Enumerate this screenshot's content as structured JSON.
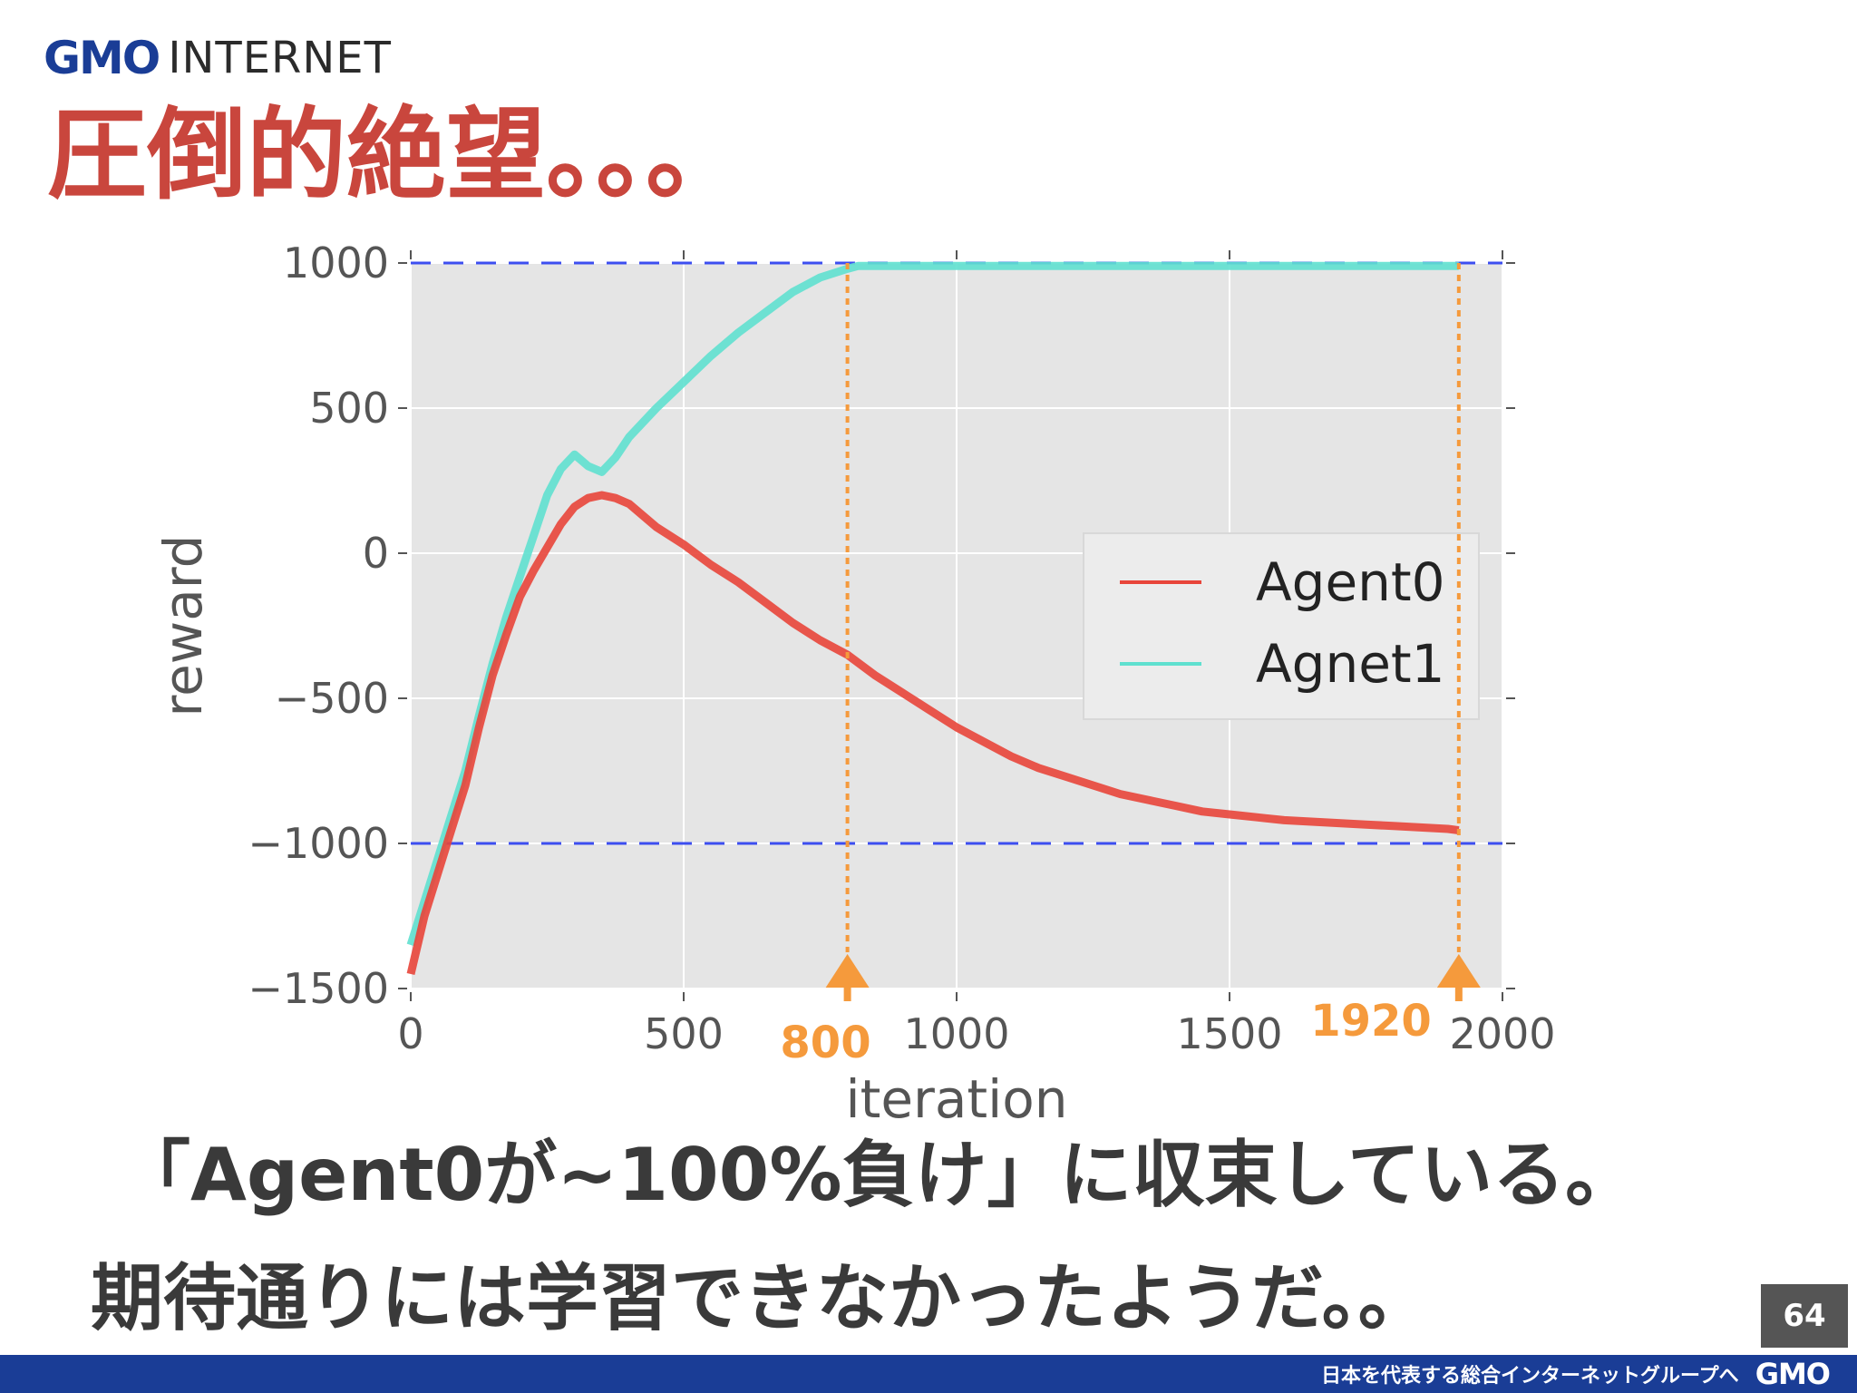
{
  "header": {
    "logo_gmo": "GMO",
    "logo_internet": "INTERNET",
    "title": "圧倒的絶望。。。"
  },
  "chart_data": {
    "type": "line",
    "xlabel": "iteration",
    "ylabel": "reward",
    "xlim": [
      0,
      2000
    ],
    "ylim": [
      -1500,
      1000
    ],
    "x_ticks": [
      0,
      500,
      1000,
      1500,
      2000
    ],
    "y_ticks": [
      1000,
      500,
      0,
      -500,
      -1000,
      -1500
    ],
    "grid": true,
    "legend": "right",
    "reference_lines": [
      {
        "y": 1000,
        "color": "#3d4ef0",
        "style": "dashed"
      },
      {
        "y": -1000,
        "color": "#3d4ef0",
        "style": "dashed"
      }
    ],
    "series": [
      {
        "name": "Agent0",
        "color": "#e8453a",
        "x": [
          0,
          25,
          50,
          75,
          100,
          125,
          150,
          175,
          200,
          225,
          250,
          275,
          300,
          325,
          350,
          375,
          400,
          450,
          500,
          550,
          600,
          650,
          700,
          750,
          800,
          850,
          900,
          950,
          1000,
          1050,
          1100,
          1150,
          1200,
          1250,
          1300,
          1350,
          1400,
          1450,
          1500,
          1550,
          1600,
          1650,
          1700,
          1750,
          1800,
          1850,
          1900,
          1920
        ],
        "y": [
          -1450,
          -1250,
          -1100,
          -950,
          -800,
          -600,
          -420,
          -280,
          -150,
          -60,
          20,
          100,
          160,
          190,
          200,
          190,
          170,
          90,
          30,
          -40,
          -100,
          -170,
          -240,
          -300,
          -350,
          -420,
          -480,
          -540,
          -600,
          -650,
          -700,
          -740,
          -770,
          -800,
          -830,
          -850,
          -870,
          -890,
          -900,
          -910,
          -920,
          -925,
          -930,
          -935,
          -940,
          -945,
          -950,
          -955
        ]
      },
      {
        "name": "Agnet1",
        "color": "#5fe0cf",
        "x": [
          0,
          25,
          50,
          75,
          100,
          125,
          150,
          175,
          200,
          225,
          250,
          275,
          300,
          325,
          350,
          375,
          400,
          450,
          500,
          550,
          600,
          650,
          700,
          750,
          800,
          820,
          850,
          900,
          1000,
          1100,
          1200,
          1300,
          1400,
          1500,
          1600,
          1700,
          1800,
          1900,
          1920
        ],
        "y": [
          -1350,
          -1200,
          -1050,
          -900,
          -750,
          -560,
          -380,
          -220,
          -80,
          60,
          200,
          290,
          340,
          300,
          280,
          330,
          400,
          500,
          590,
          680,
          760,
          830,
          900,
          950,
          980,
          990,
          990,
          990,
          990,
          990,
          990,
          990,
          990,
          990,
          990,
          990,
          990,
          990,
          990
        ]
      }
    ],
    "annotations": [
      {
        "x": 800,
        "label": "800",
        "color": "#f59a3c"
      },
      {
        "x": 1920,
        "label": "1920",
        "color": "#f59a3c"
      }
    ]
  },
  "caption": {
    "line1": "「Agent0が~100%負け」に収束している。",
    "line2": "期待通りには学習できなかったようだ。。"
  },
  "page_number": "64",
  "footer": {
    "tagline": "日本を代表する総合インターネットグループへ",
    "logo": "GMO"
  }
}
